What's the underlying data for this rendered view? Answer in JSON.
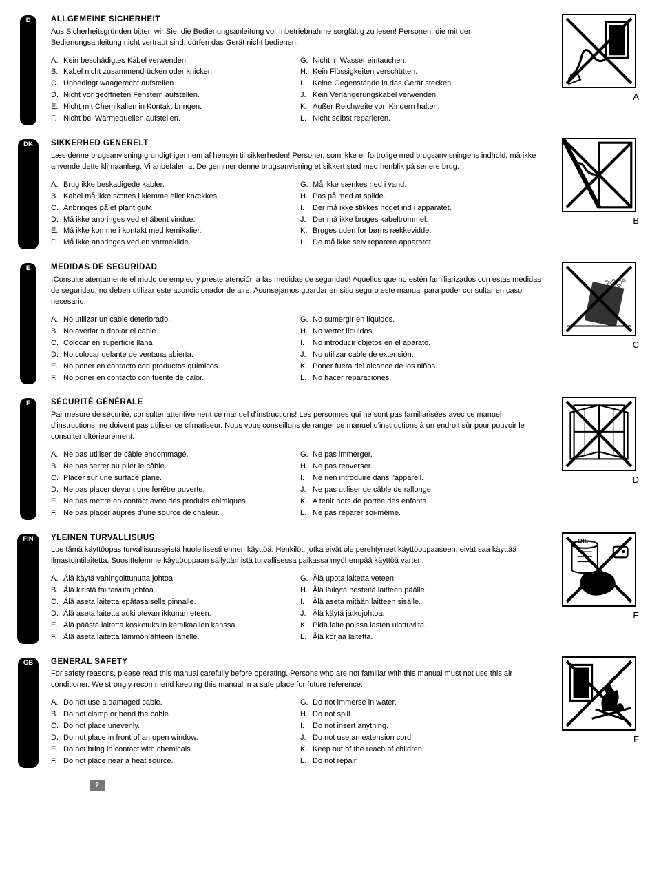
{
  "page_number": "2",
  "languages": [
    {
      "code": "D",
      "heading": "ALLGEMEINE SICHERHEIT",
      "intro": "Aus Sicherheitsgründen bitten wir Sie, die Bedienungsanleitung vor Inbetriebnahme sorgfältig zu lesen! Personen, die mit der Bedienungsanleitung nicht vertraut sind, dürfen das Gerät nicht bedienen.",
      "left": [
        {
          "l": "A.",
          "t": "Kein beschädigtes Kabel verwenden."
        },
        {
          "l": "B.",
          "t": "Kabel nicht zusammendrücken oder knicken."
        },
        {
          "l": "C.",
          "t": "Unbedingt waagerecht aufstellen."
        },
        {
          "l": "D.",
          "t": "Nicht vor geöffneten Fenstern aufstellen."
        },
        {
          "l": "E.",
          "t": "Nicht mit Chemikalien in Kontakt bringen."
        },
        {
          "l": "F.",
          "t": "Nicht bei Wärmequellen aufstellen."
        }
      ],
      "right": [
        {
          "l": "G.",
          "t": "Nicht in Wasser eintauchen."
        },
        {
          "l": "H.",
          "t": "Kein Flüssigkeiten verschütten."
        },
        {
          "l": "I.",
          "t": "Keine Gegenstände in das Gerät stecken."
        },
        {
          "l": "J.",
          "t": "Kein Verlängerungskabel verwenden."
        },
        {
          "l": "K.",
          "t": "Außer Reichweite von Kindern halten."
        },
        {
          "l": "L.",
          "t": "Nicht selbst reparieren."
        }
      ],
      "img_label": "A",
      "img_svg": "cable"
    },
    {
      "code": "DK",
      "heading": "SIKKERHED GENERELT",
      "intro": "Læs denne brugsanvisning grundigt igennem af hensyn til sikkerheden! Personer, som ikke er fortrolige med brugsanvisningens indhold, må ikke anvende dette klimaanlæg. Vi anbefaler, at De gemmer denne brugsanvisning et sikkert sted med henblik på senere brug.",
      "left": [
        {
          "l": "A.",
          "t": "Brug ikke beskadigede kabler."
        },
        {
          "l": "B.",
          "t": "Kabel må ikke sættes i klemme eller knækkes."
        },
        {
          "l": "C.",
          "t": "Anbringes på et plant gulv."
        },
        {
          "l": "D.",
          "t": "Må ikke anbringes ved et åbent vindue."
        },
        {
          "l": "E.",
          "t": "Må ikke komme i kontakt med kemikalier."
        },
        {
          "l": "F.",
          "t": "Må ikke anbringes ved en varmekilde."
        }
      ],
      "right": [
        {
          "l": "G.",
          "t": "Må ikke sænkes ned i vand."
        },
        {
          "l": "H.",
          "t": "Pas på med at spilde."
        },
        {
          "l": "I.",
          "t": "Der må ikke stikkes noget ind i apparatet."
        },
        {
          "l": "J.",
          "t": "Der må ikke bruges kabeltrommel."
        },
        {
          "l": "K.",
          "t": "Bruges uden for børns rækkevidde."
        },
        {
          "l": "L.",
          "t": "De må ikke selv reparere apparatet."
        }
      ],
      "img_label": "B",
      "img_svg": "clamp"
    },
    {
      "code": "E",
      "heading": "MEDIDAS DE SEGURIDAD",
      "intro": "¡Consulte atentamente el modo de empleo y preste atención a las medidas de seguridad! Aquellos que no estén familiarizados con estas medidas de seguridad, no deben utilizar este acondicionador de aire. Aconsejamos guardar en sitio seguro este manual para poder consultar en caso necesario.",
      "left": [
        {
          "l": "A.",
          "t": "No utilizar un cable deteriorado."
        },
        {
          "l": "B.",
          "t": "No averiar o doblar el cable."
        },
        {
          "l": "C.",
          "t": "Colocar en superficie llana"
        },
        {
          "l": "D.",
          "t": "No colocar delante de ventana abierta."
        },
        {
          "l": "E.",
          "t": "No poner en contacto con productos químicos."
        },
        {
          "l": "F.",
          "t": "No poner en contacto con fuente de calor."
        }
      ],
      "right": [
        {
          "l": "G.",
          "t": "No sumergir en líquidos."
        },
        {
          "l": "H.",
          "t": "No verter líquidos."
        },
        {
          "l": "I.",
          "t": "No introducir objetos en el aparato."
        },
        {
          "l": "J.",
          "t": "No utilizar cable de extensión."
        },
        {
          "l": "K.",
          "t": "Poner fuera del alcance de los niños."
        },
        {
          "l": "L.",
          "t": "No hacer reparaciones."
        }
      ],
      "img_label": "C",
      "img_svg": "tilt"
    },
    {
      "code": "F",
      "heading": "SÉCURITÉ GÉNÉRALE",
      "intro": "Par mesure de sécurité, consulter attentivement ce manuel d'instructions! Les personnes qui ne sont pas familiarisées avec ce manuel d'instructions, ne doivent pas utiliser ce climatiseur. Nous vous conseillons de ranger ce manuel d'instructions à un endroit sûr pour pouvoir le consulter ultérieurement.",
      "left": [
        {
          "l": "A.",
          "t": "Ne pas utiliser de câble endommagé."
        },
        {
          "l": "B.",
          "t": "Ne pas serrer ou plier le câble."
        },
        {
          "l": "C.",
          "t": "Placer sur une surface plane."
        },
        {
          "l": "D.",
          "t": "Ne pas placer devant une fenêtre ouverte."
        },
        {
          "l": "E.",
          "t": "Ne pas mettre en contact avec des produits chimiques."
        },
        {
          "l": "F.",
          "t": "Ne pas placer auprès d'une source de chaleur."
        }
      ],
      "right": [
        {
          "l": "G.",
          "t": "Ne pas immerger."
        },
        {
          "l": "H.",
          "t": "Ne pas renverser."
        },
        {
          "l": "I.",
          "t": "Ne rien introduire dans l'appareil."
        },
        {
          "l": "J.",
          "t": "Ne pas utiliser de câble de rallonge."
        },
        {
          "l": "K.",
          "t": "A tenir hors de portée des enfants."
        },
        {
          "l": "L.",
          "t": "Ne pas réparer soi-même."
        }
      ],
      "img_label": "D",
      "img_svg": "window"
    },
    {
      "code": "FIN",
      "heading": "YLEINEN TURVALLISUUS",
      "intro": "Lue tämä käyttöopas turvallisuussyistä huolellisesti ennen käyttöä. Henkilöt, jotka eivät ole perehtyneet käyttöoppaaseen, eivät saa käyttää ilmastointilaitetta. Suosittelemme käyttöoppaan säilyttämistä turvallisessa paikassa myöhempää käyttöä varten.",
      "left": [
        {
          "l": "A.",
          "t": "Älä käytä vahingoittunutta johtoa."
        },
        {
          "l": "B.",
          "t": "Älä kiristä tai taivuta johtoa."
        },
        {
          "l": "C.",
          "t": "Älä aseta laitetta epätasaiselle pinnalle."
        },
        {
          "l": "D.",
          "t": "Älä aseta laitetta auki olevan ikkunan eteen."
        },
        {
          "l": "E.",
          "t": "Älä päästä laitetta kosketuksiin kemikaalien kanssa."
        },
        {
          "l": "F.",
          "t": "Älä aseta laitetta lämmönlähteen lähelle."
        }
      ],
      "right": [
        {
          "l": "G.",
          "t": "Älä upota laitetta veteen."
        },
        {
          "l": "H.",
          "t": "Älä läikytä nesteitä laitteen päälle."
        },
        {
          "l": "I.",
          "t": "Älä aseta mitään laitteen sisälle."
        },
        {
          "l": "J.",
          "t": "Älä käytä jatkojohtoa."
        },
        {
          "l": "K.",
          "t": "Pidä laite poissa lasten ulottuvilta."
        },
        {
          "l": "L.",
          "t": "Älä korjaa laitetta."
        }
      ],
      "img_label": "E",
      "img_svg": "oil"
    },
    {
      "code": "GB",
      "heading": "GENERAL SAFETY",
      "intro": "For safety reasons, please read this manual carefully before operating. Persons who are not familiar with this manual must not use this air conditioner. We strongly recommend keeping this manual in a safe place for future reference.",
      "left": [
        {
          "l": "A.",
          "t": "Do not use a damaged cable."
        },
        {
          "l": "B.",
          "t": "Do not clamp or bend the cable."
        },
        {
          "l": "C.",
          "t": "Do not place unevenly."
        },
        {
          "l": "D.",
          "t": "Do not place in front of an open window."
        },
        {
          "l": "E.",
          "t": "Do not bring in contact with chemicals."
        },
        {
          "l": "F.",
          "t": "Do not place near a heat source."
        }
      ],
      "right": [
        {
          "l": "G.",
          "t": "Do not immerse in water."
        },
        {
          "l": "H.",
          "t": "Do not spill."
        },
        {
          "l": "I.",
          "t": "Do not insert anything."
        },
        {
          "l": "J.",
          "t": "Do not use an extension cord."
        },
        {
          "l": "K.",
          "t": "Keep out of the reach of children."
        },
        {
          "l": "L.",
          "t": "Do not repair."
        }
      ],
      "img_label": "F",
      "img_svg": "fire"
    }
  ],
  "svg": {
    "cable": "<svg viewBox='0 0 100 100'><rect x='60' y='10' width='30' height='50' fill='none' stroke='#000' stroke-width='3'/><rect x='64' y='14' width='22' height='42' fill='#000'/><path d='M60 60 Q50 70 40 55 Q30 40 25 60 Q20 80 10 85' fill='none' stroke='#000' stroke-width='3'/><path d='M20 82 L8 88 L8 96 L24 90 Z' fill='none' stroke='#000' stroke-width='2'/><line x1='5' y1='5' x2='95' y2='95' stroke='#000' stroke-width='4'/><line x1='95' y1='5' x2='5' y2='95' stroke='#000' stroke-width='4'/></svg>",
    "clamp": "<svg viewBox='0 0 100 100'><rect x='50' y='5' width='45' height='90' fill='none' stroke='#000' stroke-width='3'/><line x='50' y='5' x2='50' y2='95' stroke='#000' stroke-width='6'/><path d='M50 50 Q35 50 30 40 Q25 30 15 35' fill='none' stroke='#000' stroke-width='3'/><line x1='5' y1='5' x2='95' y2='95' stroke='#000' stroke-width='4'/><line x1='95' y1='5' x2='5' y2='95' stroke='#000' stroke-width='4'/></svg>",
    "tilt": "<svg viewBox='0 0 100 100'><rect x='35' y='30' width='45' height='55' fill='#333' transform='rotate(12 57 57)'/><line x1='5' y1='88' x2='95' y2='88' stroke='#000' stroke-width='2'/><text x='58' y='32' font-size='14' font-weight='bold' fill='#fff' stroke='#000' stroke-width='0.5'>&gt;10°</text><line x1='5' y1='5' x2='95' y2='95' stroke='#000' stroke-width='4'/><line x1='95' y1='5' x2='5' y2='95' stroke='#000' stroke-width='4'/></svg>",
    "window": "<svg viewBox='0 0 100 100'><rect x='15' y='10' width='70' height='75' fill='none' stroke='#000' stroke-width='2'/><line x1='50' y1='10' x2='50' y2='85' stroke='#000' stroke-width='2'/><line x1='15' y1='47' x2='85' y2='47' stroke='#000' stroke-width='2'/><polygon points='50,10 10,20 10,85 50,75' fill='none' stroke='#000' stroke-width='2'/><polygon points='50,10 90,20 90,85 50,75' fill='none' stroke='#000' stroke-width='2'/><line x1='30' y1='14' x2='30' y2='80' stroke='#000' stroke-width='1'/><line x1='70' y1='14' x2='70' y2='80' stroke='#000' stroke-width='1'/><line x1='5' y1='5' x2='95' y2='95' stroke='#000' stroke-width='4'/><line x1='95' y1='5' x2='5' y2='95' stroke='#000' stroke-width='4'/></svg>",
    "oil": "<svg viewBox='0 0 100 100'><ellipse cx='30' cy='15' rx='18' ry='5' fill='none' stroke='#000' stroke-width='2'/><path d='M12 15 L12 50 A18 5 0 0 0 48 50 L48 15' fill='none' stroke='#000' stroke-width='2'/><text x='20' y='13' font-size='9' font-weight='bold'>OIL</text><line x1='20' y1='25' x2='40' y2='25' stroke='#000'/><line x1='20' y1='32' x2='40' y2='32' stroke='#000'/><line x1='20' y1='39' x2='40' y2='39' stroke='#000'/><rect x='70' y='18' width='20' height='15' rx='3' fill='none' stroke='#000' stroke-width='2'/><circle cx='76' cy='25' r='2' fill='#000'/><circle cx='84' cy='25' r='2' fill='#000'/><path d='M30 55 Q20 65 25 75 Q35 90 55 85 Q80 78 70 60 Q60 50 45 55 Z' fill='#000'/><line x1='5' y1='5' x2='95' y2='95' stroke='#000' stroke-width='4'/><line x1='95' y1='5' x2='5' y2='95' stroke='#000' stroke-width='4'/></svg>",
    "fire": "<svg viewBox='0 0 100 100'><rect x='10' y='10' width='30' height='50' fill='none' stroke='#000' stroke-width='3'/><rect x='14' y='14' width='22' height='42' fill='#000'/><path d='M55 75 Q50 55 60 50 Q55 40 65 35 Q70 50 75 45 Q80 55 75 65 Q85 60 85 75 Z' fill='#000'/><line x1='40' y1='85' x2='95' y2='70' stroke='#000' stroke-width='3'/><line x1='45' y1='72' x2='90' y2='88' stroke='#000' stroke-width='3'/><line x1='5' y1='5' x2='95' y2='95' stroke='#000' stroke-width='4'/><line x1='95' y1='5' x2='5' y2='95' stroke='#000' stroke-width='4'/></svg>"
  }
}
